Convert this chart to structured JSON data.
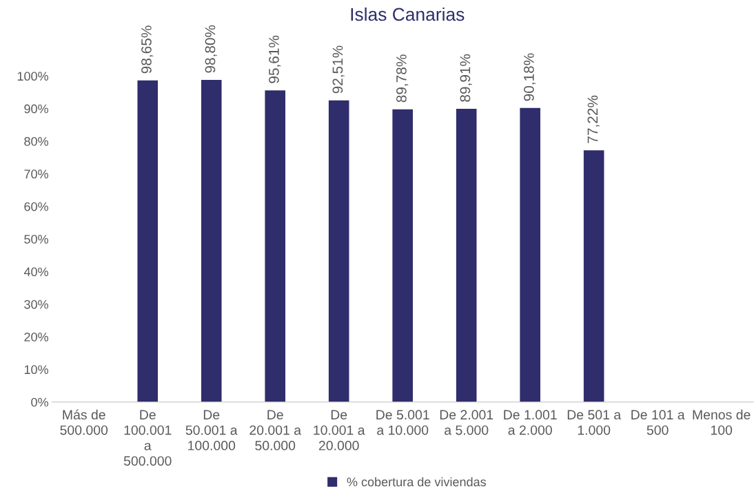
{
  "chart_data": {
    "type": "bar",
    "title": "Islas Canarias",
    "categories": [
      "Más de 500.000",
      "De 100.001 a 500.000",
      "De 50.001 a 100.000",
      "De 20.001 a 50.000",
      "De 10.001 a 20.000",
      "De 5.001 a 10.000",
      "De 2.001 a 5.000",
      "De 1.001 a 2.000",
      "De 501 a 1.000",
      "De 101 a 500",
      "Menos de 100"
    ],
    "series": [
      {
        "name": "% cobertura de viviendas",
        "color": "#2f2d6b",
        "values": [
          null,
          98.65,
          98.8,
          95.61,
          92.51,
          89.78,
          89.91,
          90.18,
          77.22,
          null,
          null
        ],
        "value_labels": [
          null,
          "98,65%",
          "98,80%",
          "95,61%",
          "92,51%",
          "89,78%",
          "89,91%",
          "90,18%",
          "77,22%",
          null,
          null
        ]
      }
    ],
    "ylim": [
      0,
      100
    ],
    "yticks": [
      {
        "value": 0,
        "label": "0%"
      },
      {
        "value": 10,
        "label": "10%"
      },
      {
        "value": 20,
        "label": "20%"
      },
      {
        "value": 30,
        "label": "30%"
      },
      {
        "value": 40,
        "label": "40%"
      },
      {
        "value": 50,
        "label": "50%"
      },
      {
        "value": 60,
        "label": "60%"
      },
      {
        "value": 70,
        "label": "70%"
      },
      {
        "value": 80,
        "label": "80%"
      },
      {
        "value": 90,
        "label": "90%"
      },
      {
        "value": 100,
        "label": "100%"
      }
    ],
    "grid": false,
    "legend": "bottom"
  }
}
